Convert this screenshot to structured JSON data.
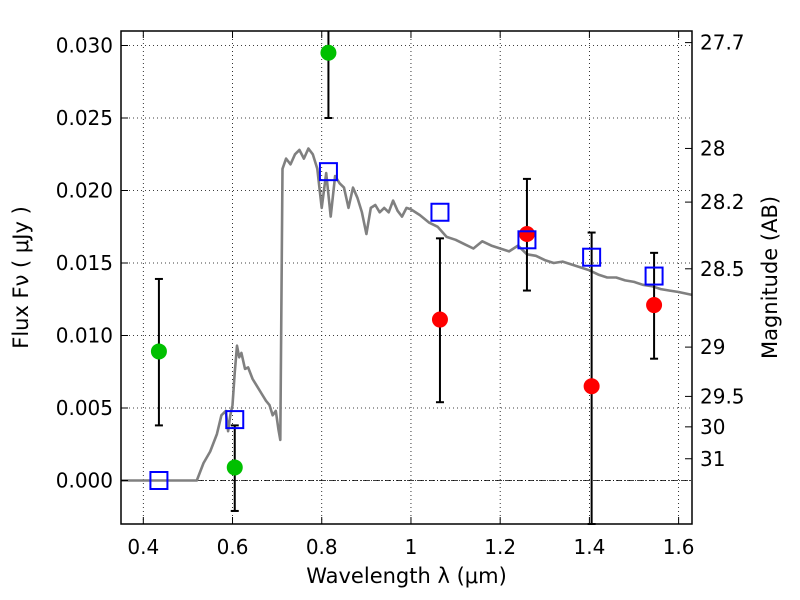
{
  "chart_data": {
    "type": "scatter",
    "xlabel": "Wavelength  λ (μm)",
    "ylabel": "Flux  Fν  ( μJy )",
    "ylabel_right": "Magnitude (AB)",
    "xlim": [
      0.35,
      1.63
    ],
    "ylim": [
      -0.003,
      0.031
    ],
    "grid": true,
    "x_ticks": [
      0.4,
      0.6,
      0.8,
      1.0,
      1.2,
      1.4,
      1.6
    ],
    "x_tick_labels": [
      "0.4",
      "0.6",
      "0.8",
      "1",
      "1.2",
      "1.4",
      "1.6"
    ],
    "y_ticks": [
      0.0,
      0.005,
      0.01,
      0.015,
      0.02,
      0.025,
      0.03
    ],
    "y_tick_labels": [
      "0.000",
      "0.005",
      "0.010",
      "0.015",
      "0.020",
      "0.025",
      "0.030"
    ],
    "right_ticks": [
      {
        "label": "27.7",
        "flux": 0.0302
      },
      {
        "label": "28",
        "flux": 0.0229
      },
      {
        "label": "28.2",
        "flux": 0.0192
      },
      {
        "label": "28.5",
        "flux": 0.0146
      },
      {
        "label": "29",
        "flux": 0.0092
      },
      {
        "label": "29.5",
        "flux": 0.0058
      },
      {
        "label": "30",
        "flux": 0.0037
      },
      {
        "label": "31",
        "flux": 0.0015
      }
    ],
    "model_curve": {
      "color": "#808080",
      "x": [
        0.35,
        0.52,
        0.535,
        0.55,
        0.565,
        0.575,
        0.585,
        0.59,
        0.595,
        0.6,
        0.605,
        0.61,
        0.615,
        0.62,
        0.628,
        0.635,
        0.645,
        0.655,
        0.665,
        0.675,
        0.683,
        0.69,
        0.697,
        0.703,
        0.707,
        0.712,
        0.72,
        0.73,
        0.74,
        0.75,
        0.76,
        0.77,
        0.78,
        0.79,
        0.8,
        0.81,
        0.82,
        0.83,
        0.84,
        0.85,
        0.86,
        0.87,
        0.88,
        0.89,
        0.9,
        0.91,
        0.92,
        0.93,
        0.94,
        0.95,
        0.96,
        0.97,
        0.98,
        0.99,
        1.0,
        1.02,
        1.04,
        1.06,
        1.08,
        1.1,
        1.12,
        1.14,
        1.16,
        1.18,
        1.2,
        1.22,
        1.24,
        1.26,
        1.28,
        1.3,
        1.32,
        1.34,
        1.36,
        1.38,
        1.4,
        1.42,
        1.44,
        1.46,
        1.48,
        1.5,
        1.52,
        1.54,
        1.56,
        1.58,
        1.6,
        1.63
      ],
      "y": [
        0.0,
        0.0,
        0.0012,
        0.002,
        0.0032,
        0.0045,
        0.0048,
        0.0034,
        0.0045,
        0.0052,
        0.0075,
        0.0093,
        0.0085,
        0.0088,
        0.0077,
        0.0078,
        0.007,
        0.0065,
        0.006,
        0.0055,
        0.0052,
        0.0045,
        0.0048,
        0.0035,
        0.0028,
        0.0215,
        0.0222,
        0.0218,
        0.0225,
        0.0228,
        0.0222,
        0.0229,
        0.0225,
        0.0215,
        0.0188,
        0.0212,
        0.0182,
        0.021,
        0.0205,
        0.0202,
        0.0188,
        0.0202,
        0.0195,
        0.0185,
        0.017,
        0.0188,
        0.019,
        0.0185,
        0.0188,
        0.0185,
        0.0193,
        0.0186,
        0.0182,
        0.0188,
        0.0187,
        0.0183,
        0.0178,
        0.0175,
        0.0168,
        0.0166,
        0.0163,
        0.016,
        0.0165,
        0.0162,
        0.016,
        0.0158,
        0.0162,
        0.0156,
        0.0155,
        0.0152,
        0.015,
        0.0151,
        0.0149,
        0.0147,
        0.0145,
        0.0142,
        0.014,
        0.014,
        0.0138,
        0.0137,
        0.0135,
        0.0134,
        0.0132,
        0.0131,
        0.013,
        0.0128
      ]
    },
    "series": [
      {
        "color": "#00c000",
        "marker": "circle",
        "x": [
          0.435,
          0.605,
          0.815
        ],
        "y": [
          0.0089,
          0.0009,
          0.0295
        ],
        "yerr_low": [
          0.0038,
          -0.0021,
          0.025
        ],
        "yerr_high": [
          0.0139,
          0.0038,
          0.0315
        ]
      },
      {
        "color": "#ff0000",
        "marker": "circle",
        "x": [
          1.065,
          1.26,
          1.405,
          1.545
        ],
        "y": [
          0.0111,
          0.017,
          0.0065,
          0.0121
        ],
        "yerr_low": [
          0.0054,
          0.0131,
          -0.003,
          0.0084
        ],
        "yerr_high": [
          0.0167,
          0.0208,
          0.0171,
          0.0157
        ]
      },
      {
        "color": "#0000ff",
        "marker": "open-square",
        "x": [
          0.435,
          0.605,
          0.815,
          1.065,
          1.26,
          1.405,
          1.545
        ],
        "y": [
          0.0,
          0.0042,
          0.0213,
          0.0185,
          0.0166,
          0.0154,
          0.0141
        ]
      }
    ]
  }
}
